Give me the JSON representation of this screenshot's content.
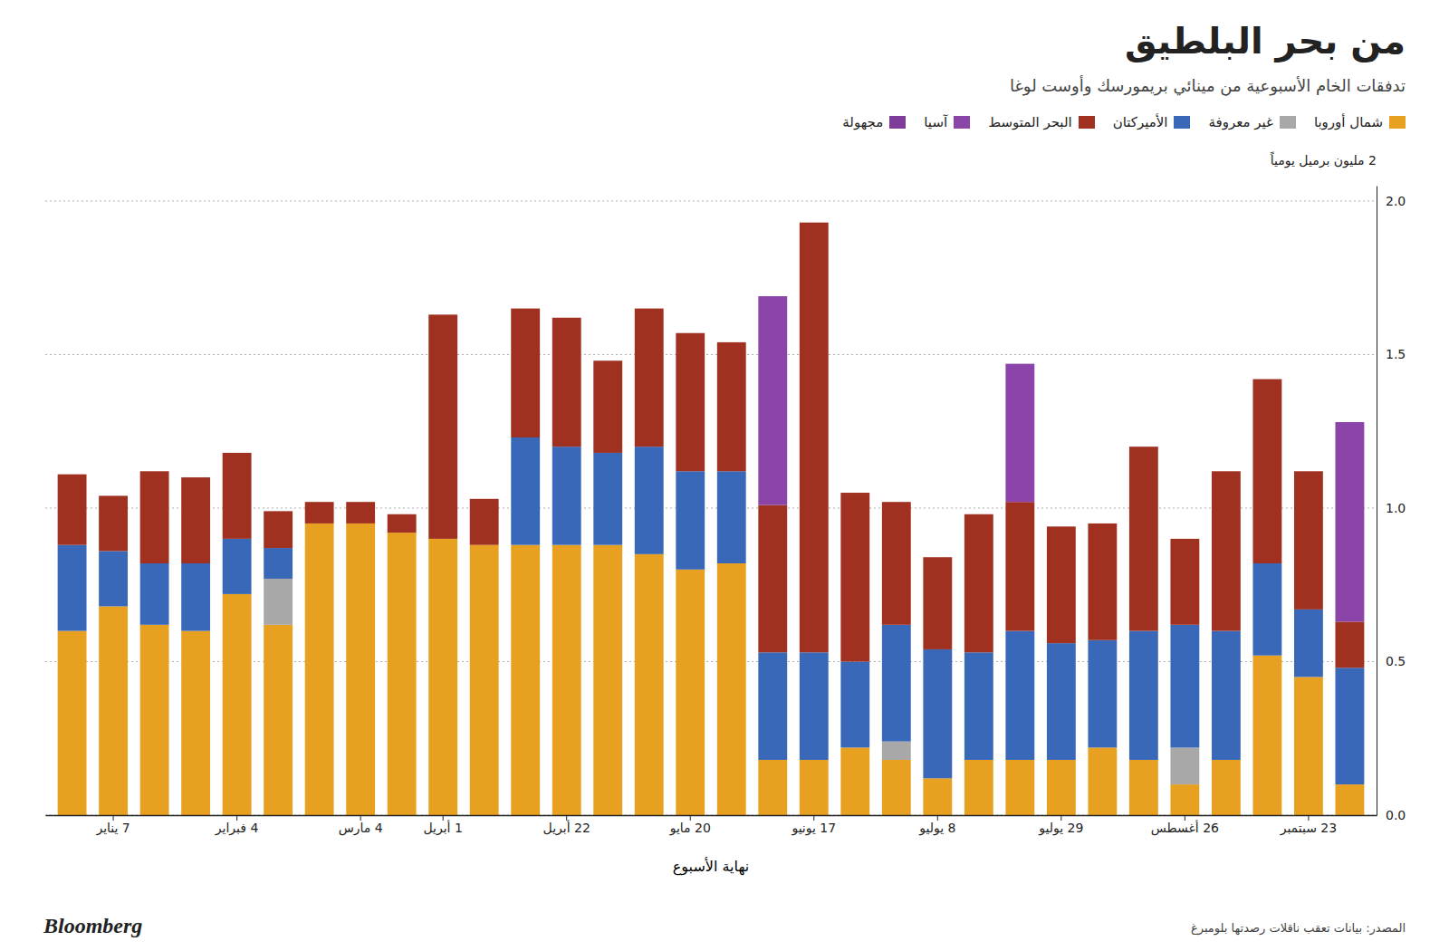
{
  "chart_data": {
    "type": "bar",
    "stacked": true,
    "title": "من بحر البلطيق",
    "subtitle": "تدفقات الخام الأسبوعية من مينائي بريمورسك وأوست لوغا",
    "y_label": "2 مليون برميل يومياً",
    "x_label": "نهاية الأسبوع",
    "annotations": [
      "المصدر: بيانات تعقب ناقلات رصدتها بلومبرغ",
      "Bloomberg"
    ],
    "categories": [
      null,
      "7 يناير",
      null,
      null,
      "4 فبراير",
      null,
      null,
      "4 مارس",
      null,
      "1 أبريل",
      null,
      null,
      "22 أبريل",
      null,
      null,
      "20 مايو",
      null,
      null,
      "17 يونيو",
      null,
      null,
      "8 يوليو",
      null,
      null,
      "29 يوليو",
      null,
      null,
      "26 أغسطس",
      null,
      null,
      "23 سبتمبر",
      null
    ],
    "series": [
      {
        "name": "شمال أوروبا",
        "color": "#E8A020",
        "values": [
          0.6,
          0.68,
          0.62,
          0.6,
          0.72,
          0.62,
          0.95,
          0.95,
          0.92,
          0.9,
          0.88,
          0.88,
          0.88,
          0.88,
          0.85,
          0.8,
          0.82,
          0.18,
          0.18,
          0.22,
          0.18,
          0.12,
          0.18,
          0.18,
          0.18,
          0.22,
          0.18,
          0.1,
          0.18,
          0.52,
          0.45,
          0.1
        ]
      },
      {
        "name": "غير معروفة",
        "color": "#A8A8A8",
        "values": [
          0.0,
          0.0,
          0.0,
          0.0,
          0.0,
          0.15,
          0.0,
          0.0,
          0.0,
          0.0,
          0.0,
          0.0,
          0.0,
          0.0,
          0.0,
          0.0,
          0.0,
          0.0,
          0.0,
          0.0,
          0.06,
          0.0,
          0.0,
          0.0,
          0.0,
          0.0,
          0.0,
          0.12,
          0.0,
          0.0,
          0.0,
          0.0
        ]
      },
      {
        "name": "الأميركتان",
        "color": "#3A68B8",
        "values": [
          0.28,
          0.18,
          0.2,
          0.22,
          0.18,
          0.1,
          0.0,
          0.0,
          0.0,
          0.0,
          0.0,
          0.35,
          0.32,
          0.3,
          0.35,
          0.32,
          0.3,
          0.35,
          0.35,
          0.28,
          0.38,
          0.42,
          0.35,
          0.42,
          0.38,
          0.35,
          0.42,
          0.4,
          0.42,
          0.3,
          0.22,
          0.38
        ]
      },
      {
        "name": "البحر المتوسط",
        "color": "#A03020",
        "values": [
          0.23,
          0.18,
          0.3,
          0.28,
          0.28,
          0.12,
          0.07,
          0.07,
          0.06,
          0.73,
          0.15,
          0.42,
          0.42,
          0.3,
          0.45,
          0.45,
          0.42,
          0.48,
          1.4,
          0.55,
          0.4,
          0.3,
          0.45,
          0.42,
          0.38,
          0.38,
          0.6,
          0.28,
          0.52,
          0.6,
          0.45,
          0.15
        ]
      },
      {
        "name": "آسيا",
        "color": "#8B44A8",
        "values": [
          0.0,
          0.0,
          0.0,
          0.0,
          0.0,
          0.0,
          0.0,
          0.0,
          0.0,
          0.0,
          0.0,
          0.0,
          0.0,
          0.0,
          0.0,
          0.0,
          0.0,
          0.68,
          0.0,
          0.0,
          0.0,
          0.0,
          0.0,
          0.45,
          0.0,
          0.0,
          0.0,
          0.0,
          0.0,
          0.0,
          0.0,
          0.65
        ]
      },
      {
        "name": "مجهولة",
        "color": "#7D3C98",
        "values": [
          null,
          null,
          null,
          null,
          null,
          null,
          null,
          null,
          null,
          null,
          null,
          null,
          null,
          null,
          null,
          null,
          null,
          null,
          null,
          null,
          null,
          null,
          null,
          null,
          null,
          null,
          null,
          null,
          null,
          null,
          null,
          null
        ]
      }
    ],
    "ylim": [
      0,
      2.05
    ],
    "yticks": [
      {
        "value": 0,
        "label": "0.0"
      },
      0.5,
      {
        "value": 1.0,
        "label": "1.0"
      },
      1.5,
      {
        "value": 2.0,
        "label": "2.0"
      }
    ],
    "grid": true,
    "legend": "top-right"
  }
}
